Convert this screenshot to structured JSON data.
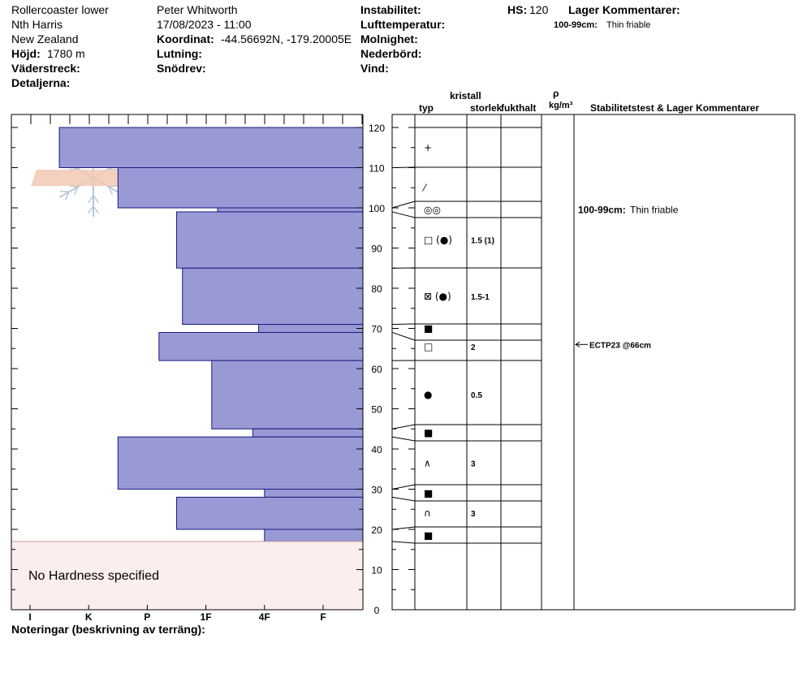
{
  "header": {
    "location": "Rollercoaster lower",
    "range": "Nth Harris",
    "country": "New Zealand",
    "elevation_label": "Höjd:",
    "elevation_value": "1780 m",
    "aspect_label": "Väderstreck:",
    "details_label": "Detaljerna:",
    "observer": "Peter Whitworth",
    "datetime": "17/08/2023 - 11:00",
    "coord_label": "Koordinat:",
    "coord_value": "-44.56692N, -179.20005E",
    "slope_label": "Lutning:",
    "wind_loading_label": "Snödrev:",
    "instability_label": "Instabilitet:",
    "air_temp_label": "Lufttemperatur:",
    "sky_label": "Molnighet:",
    "precip_label": "Nederbörd:",
    "wind_label": "Vind:",
    "hs_label": "HS:",
    "hs_value": "120",
    "layer_comments_label": "Lager Kommentarer:",
    "layer_comment_depth": "100-99cm:",
    "layer_comment_text": "Thin friable"
  },
  "columns": {
    "crystal": "kristall",
    "type": "typ",
    "size": "storlek",
    "moisture": "fukthalt",
    "rho": "ρ",
    "density_unit": "kg/m³",
    "stability": "Stabilitetstest & Lager Kommentarer"
  },
  "footer": {
    "notes_label": "Noteringar (beskrivning av terräng):"
  },
  "chart_data": {
    "type": "bar",
    "title": "",
    "xlabel": "",
    "ylabel": "",
    "ylim": [
      0,
      120
    ],
    "yticks": [
      0,
      10,
      20,
      30,
      40,
      50,
      60,
      70,
      80,
      90,
      100,
      110,
      120
    ],
    "hardness_scale": [
      "I",
      "K",
      "P",
      "1F",
      "4F",
      "F"
    ],
    "no_hardness_text": "No Hardness specified",
    "no_hardness_range": [
      0,
      17
    ],
    "layers": [
      {
        "top": 120,
        "bottom": 110,
        "hardness": 0.5
      },
      {
        "top": 110,
        "bottom": 100,
        "hardness": 1.5
      },
      {
        "top": 100,
        "bottom": 99,
        "hardness": 3.2
      },
      {
        "top": 99,
        "bottom": 85,
        "hardness": 2.5
      },
      {
        "top": 85,
        "bottom": 71,
        "hardness": 2.6
      },
      {
        "top": 71,
        "bottom": 69,
        "hardness": 3.9
      },
      {
        "top": 69,
        "bottom": 62,
        "hardness": 2.2
      },
      {
        "top": 62,
        "bottom": 45,
        "hardness": 3.1
      },
      {
        "top": 45,
        "bottom": 43,
        "hardness": 3.8
      },
      {
        "top": 43,
        "bottom": 30,
        "hardness": 1.5
      },
      {
        "top": 30,
        "bottom": 28,
        "hardness": 4.0
      },
      {
        "top": 28,
        "bottom": 20,
        "hardness": 2.5
      },
      {
        "top": 20,
        "bottom": 17,
        "hardness": 4.0
      }
    ],
    "crystal_layers": [
      {
        "depth": 115,
        "symbol": "+",
        "size": ""
      },
      {
        "depth": 105,
        "symbol": "⁄",
        "size": ""
      },
      {
        "depth": 99.5,
        "symbol": "◎◎",
        "size": ""
      },
      {
        "depth": 92,
        "symbol": "□ (●)",
        "size": "1.5 (1)"
      },
      {
        "depth": 78,
        "symbol": "⊠ (●)",
        "size": "1.5-1"
      },
      {
        "depth": 70,
        "symbol": "■",
        "size": ""
      },
      {
        "depth": 65.5,
        "symbol": "□",
        "size": "2"
      },
      {
        "depth": 53.5,
        "symbol": "●",
        "size": "0.5"
      },
      {
        "depth": 44,
        "symbol": "■",
        "size": ""
      },
      {
        "depth": 36.5,
        "symbol": "∧",
        "size": "3"
      },
      {
        "depth": 29,
        "symbol": "■",
        "size": ""
      },
      {
        "depth": 24,
        "symbol": "∩",
        "size": "3"
      },
      {
        "depth": 18.5,
        "symbol": "■",
        "size": ""
      }
    ],
    "stability_tests": [
      {
        "depth": 66,
        "label": "ECTP23 @66cm"
      }
    ]
  }
}
